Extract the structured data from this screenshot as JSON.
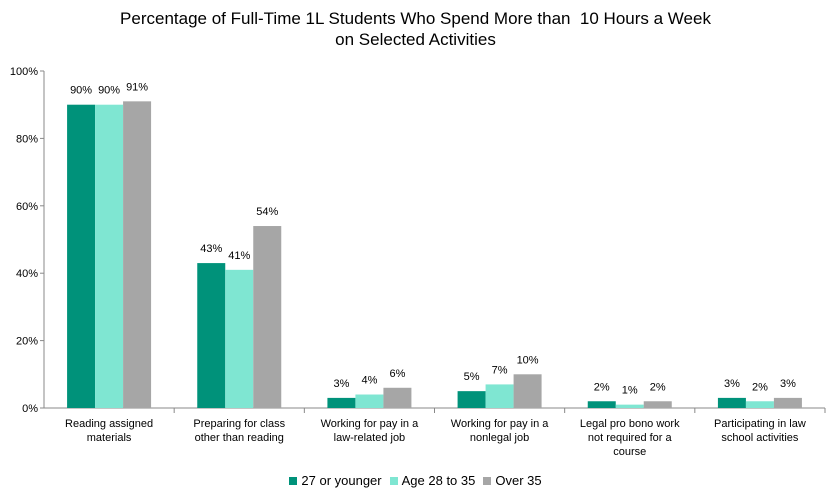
{
  "chart_data": {
    "type": "bar",
    "title": [
      "Percentage of Full-Time 1L Students Who Spend More than  10 Hours a Week",
      "on Selected Activities"
    ],
    "categories": [
      [
        "Reading assigned",
        "materials"
      ],
      [
        "Preparing for class",
        "other than reading"
      ],
      [
        "Working for pay in a",
        "law-related job"
      ],
      [
        "Working for pay in a",
        "nonlegal job"
      ],
      [
        "Legal pro bono work",
        "not required for a",
        "course"
      ],
      [
        "Participating in law",
        "school activities"
      ]
    ],
    "series": [
      {
        "name": "27 or younger",
        "color": "#00927A",
        "values": [
          90,
          43,
          3,
          5,
          2,
          3
        ],
        "labels": [
          "90%",
          "43%",
          "3%",
          "5%",
          "2%",
          "3%"
        ]
      },
      {
        "name": "Age 28 to 35",
        "color": "#7FE6D2",
        "values": [
          90,
          41,
          4,
          7,
          1,
          2
        ],
        "labels": [
          "90%",
          "41%",
          "4%",
          "7%",
          "1%",
          "2%"
        ]
      },
      {
        "name": "Over 35",
        "color": "#A6A6A6",
        "values": [
          91,
          54,
          6,
          10,
          2,
          3
        ],
        "labels": [
          "91%",
          "54%",
          "6%",
          "10%",
          "2%",
          "3%"
        ]
      }
    ],
    "yticks": [
      "0%",
      "20%",
      "40%",
      "60%",
      "80%",
      "100%"
    ],
    "ylim": [
      0,
      100
    ],
    "grid": false,
    "legend": "bottom-center"
  }
}
